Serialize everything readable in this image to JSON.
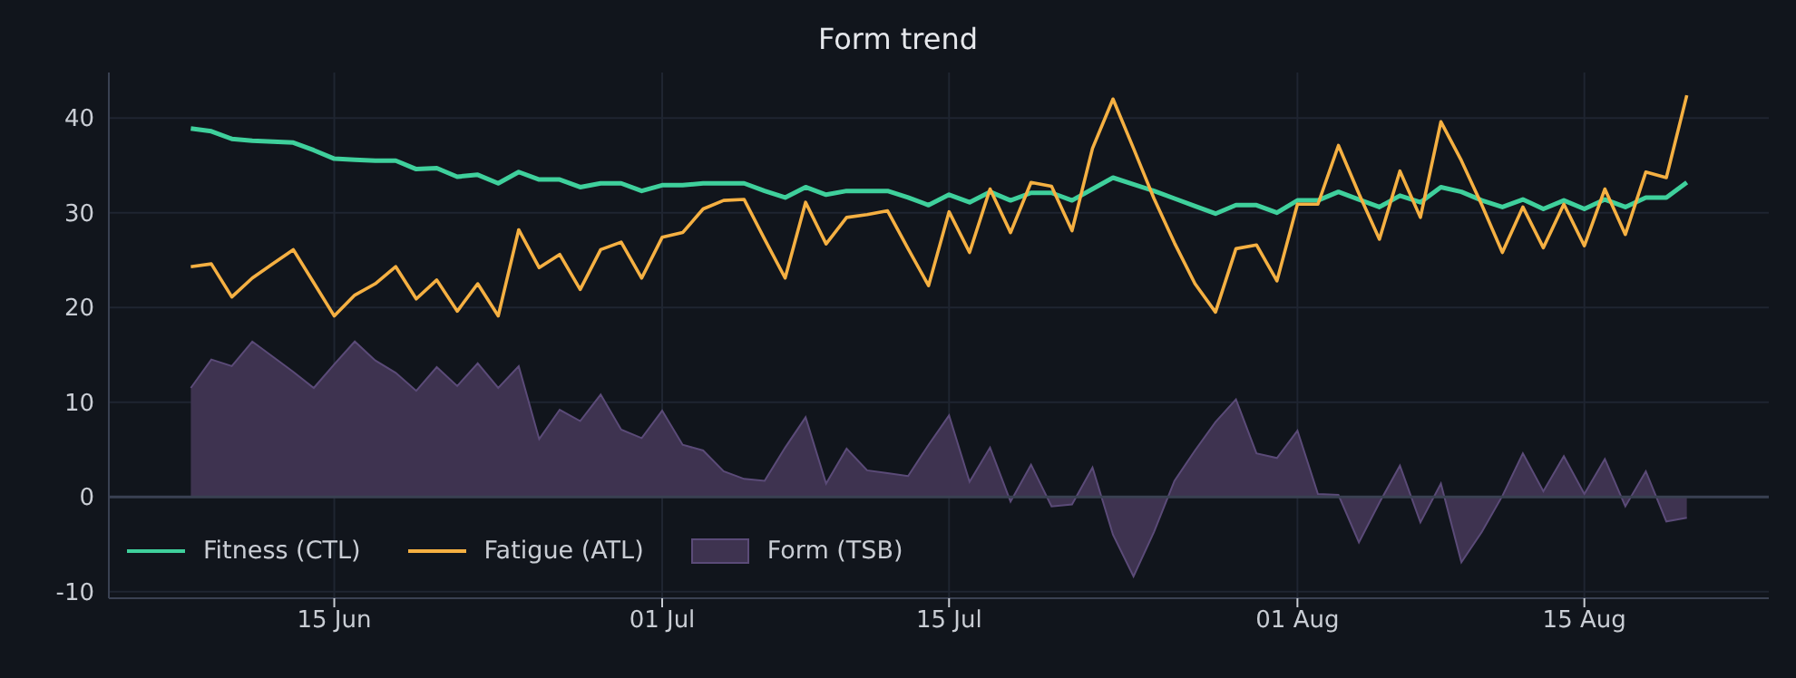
{
  "chart_data": {
    "type": "line",
    "title": "Form trend",
    "x": [
      "--06-08",
      "--06-09",
      "--06-10",
      "--06-11",
      "--06-12",
      "--06-13",
      "--06-14",
      "--06-15",
      "--06-16",
      "--06-17",
      "--06-18",
      "--06-19",
      "--06-20",
      "--06-21",
      "--06-22",
      "--06-23",
      "--06-24",
      "--06-25",
      "--06-26",
      "--06-27",
      "--06-28",
      "--06-29",
      "--06-30",
      "--07-01",
      "--07-02",
      "--07-03",
      "--07-04",
      "--07-05",
      "--07-06",
      "--07-07",
      "--07-08",
      "--07-09",
      "--07-10",
      "--07-11",
      "--07-12",
      "--07-13",
      "--07-14",
      "--07-15",
      "--07-16",
      "--07-17",
      "--07-18",
      "--07-19",
      "--07-20",
      "--07-21",
      "--07-22",
      "--07-23",
      "--07-24",
      "--07-25",
      "--07-26",
      "--07-27",
      "--07-28",
      "--07-29",
      "--07-30",
      "--07-31",
      "--08-01",
      "--08-02",
      "--08-03",
      "--08-04",
      "--08-05",
      "--08-06",
      "--08-07",
      "--08-08",
      "--08-09",
      "--08-10",
      "--08-11",
      "--08-12",
      "--08-13",
      "--08-14",
      "--08-15",
      "--08-16",
      "--08-17",
      "--08-18",
      "--08-19",
      "--08-20"
    ],
    "series": [
      {
        "name": "Fitness (CTL)",
        "color": "#3fd09c",
        "values": [
          38.9,
          38.6,
          37.8,
          37.6,
          37.5,
          37.4,
          36.6,
          35.7,
          35.6,
          35.5,
          35.5,
          34.6,
          34.7,
          33.8,
          34.0,
          33.1,
          34.3,
          33.5,
          33.5,
          32.7,
          33.1,
          33.1,
          32.3,
          32.9,
          32.9,
          33.1,
          33.1,
          33.1,
          32.3,
          31.6,
          32.7,
          31.9,
          32.3,
          32.3,
          32.3,
          31.6,
          30.8,
          31.9,
          31.1,
          32.2,
          31.3,
          32.1,
          32.1,
          31.3,
          32.5,
          33.7,
          33.0,
          32.3,
          31.5,
          30.7,
          29.9,
          30.8,
          30.8,
          30.0,
          31.3,
          31.3,
          32.2,
          31.4,
          30.6,
          31.8,
          31.1,
          32.7,
          32.2,
          31.3,
          30.6,
          31.4,
          30.4,
          31.3,
          30.4,
          31.4,
          30.6,
          31.6,
          31.6,
          33.2
        ]
      },
      {
        "name": "Fatigue (ATL)",
        "color": "#f5b042",
        "values": [
          24.3,
          24.6,
          21.1,
          23.1,
          24.6,
          26.1,
          22.6,
          19.1,
          21.3,
          22.5,
          24.3,
          20.9,
          22.9,
          19.6,
          22.5,
          19.1,
          28.2,
          24.2,
          25.6,
          21.9,
          26.1,
          26.9,
          23.1,
          27.4,
          27.9,
          30.4,
          31.3,
          31.4,
          27.2,
          23.1,
          31.1,
          26.7,
          29.5,
          29.8,
          30.2,
          26.2,
          22.3,
          30.1,
          25.8,
          32.5,
          27.9,
          33.2,
          32.8,
          28.1,
          36.8,
          42.0,
          36.8,
          31.5,
          26.8,
          22.5,
          19.5,
          26.2,
          26.6,
          22.8,
          30.9,
          30.9,
          37.1,
          32.0,
          27.2,
          34.4,
          29.5,
          39.6,
          35.5,
          30.8,
          25.8,
          30.6,
          26.3,
          30.9,
          26.5,
          32.5,
          27.7,
          34.3,
          33.7,
          42.4
        ]
      },
      {
        "name": "Form (TSB)",
        "type": "area",
        "color": "#3e3350",
        "values": [
          11.5,
          14.5,
          13.8,
          16.4,
          14.8,
          13.2,
          11.5,
          14.0,
          16.4,
          14.4,
          13.1,
          11.2,
          13.7,
          11.7,
          14.1,
          11.5,
          13.8,
          6.1,
          9.2,
          8.0,
          10.8,
          7.1,
          6.2,
          9.1,
          5.5,
          4.9,
          2.7,
          1.9,
          1.7,
          5.2,
          8.4,
          1.4,
          5.1,
          2.8,
          2.5,
          2.2,
          5.5,
          8.6,
          1.6,
          5.2,
          -0.5,
          3.4,
          -1.0,
          -0.8,
          3.1,
          -4.0,
          -8.4,
          -3.7,
          1.7,
          4.9,
          7.9,
          10.3,
          4.6,
          4.1,
          7.0,
          0.3,
          0.2,
          -4.8,
          -0.6,
          3.3,
          -2.7,
          1.4,
          -6.9,
          -3.7,
          0.1,
          4.6,
          0.6,
          4.3,
          0.3,
          4.0,
          -1.0,
          2.7,
          -2.6,
          -2.2
        ]
      }
    ],
    "xlim": [
      "--06-04",
      "--08-24"
    ],
    "xticks": [
      {
        "value": "--06-15",
        "label": "15 Jun"
      },
      {
        "value": "--07-01",
        "label": "01 Jul"
      },
      {
        "value": "--07-15",
        "label": "15 Jul"
      },
      {
        "value": "--08-01",
        "label": "01 Aug"
      },
      {
        "value": "--08-15",
        "label": "15 Aug"
      }
    ],
    "ylim": [
      -10.7,
      44.8
    ],
    "yticks": [
      -10,
      0,
      10,
      20,
      30,
      40
    ],
    "ref_lines": [
      {
        "axis": "y",
        "value": 0,
        "color": "#3a4152"
      }
    ],
    "grid": true,
    "legend": "bottom left",
    "marker": "none",
    "line_style": "solid"
  }
}
